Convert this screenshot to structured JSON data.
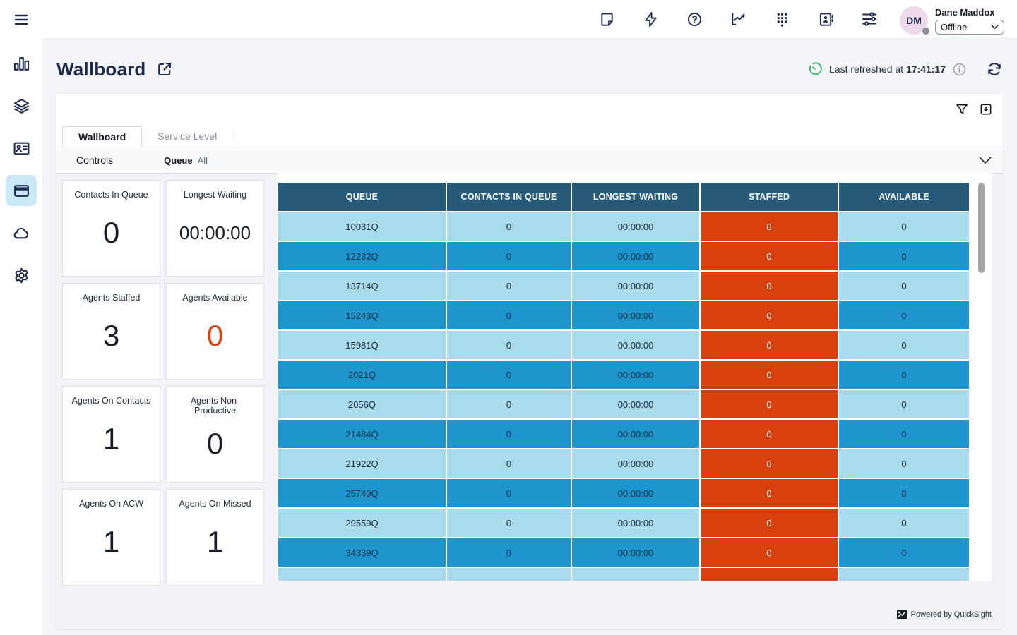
{
  "colors": {
    "navy": "#1d2b4f",
    "accent_green": "#2fb566",
    "table_header": "#265a77",
    "row_light": "#a8dbec",
    "row_blue": "#1e95cd",
    "staffed_orange": "#d8400e",
    "active_nav_bg": "#cbe8f6"
  },
  "sidebar": {
    "menu_icon": "hamburger-icon",
    "items": [
      {
        "name": "metrics",
        "icon": "bar-chart-icon",
        "active": false
      },
      {
        "name": "layers",
        "icon": "layers-icon",
        "active": false
      },
      {
        "name": "contacts",
        "icon": "contact-card-icon",
        "active": false
      },
      {
        "name": "wallboard",
        "icon": "browser-icon",
        "active": true
      },
      {
        "name": "cloud",
        "icon": "cloud-icon",
        "active": false
      },
      {
        "name": "settings",
        "icon": "gear-icon",
        "active": false
      }
    ]
  },
  "topbar": {
    "icons": [
      {
        "name": "note"
      },
      {
        "name": "zap"
      },
      {
        "name": "help"
      },
      {
        "name": "chart-line"
      },
      {
        "name": "dialpad"
      },
      {
        "name": "address-book"
      },
      {
        "name": "sliders"
      }
    ],
    "user": {
      "initials": "DM",
      "name": "Dane Maddox",
      "status": "Offline"
    }
  },
  "header": {
    "title": "Wallboard",
    "last_refreshed_label": "Last refreshed at",
    "last_refreshed_time": "17:41:17"
  },
  "panel": {
    "tabs": [
      {
        "label": "Wallboard",
        "active": true
      },
      {
        "label": "Service Level",
        "active": false
      }
    ],
    "controls": {
      "label": "Controls",
      "filter_name": "Queue",
      "filter_value": "All"
    }
  },
  "kpis": [
    {
      "label": "Contacts In Queue",
      "value": "0"
    },
    {
      "label": "Longest Waiting",
      "value": "00:00:00"
    },
    {
      "label": "Agents Staffed",
      "value": "3"
    },
    {
      "label": "Agents Available",
      "value": "0",
      "highlight": true
    },
    {
      "label": "Agents On Contacts",
      "value": "1"
    },
    {
      "label": "Agents Non-Productive",
      "value": "0"
    },
    {
      "label": "Agents On ACW",
      "value": "1"
    },
    {
      "label": "Agents On Missed",
      "value": "1"
    }
  ],
  "chart_data": {
    "type": "table",
    "columns": [
      "QUEUE",
      "CONTACTS IN QUEUE",
      "LONGEST WAITING",
      "STAFFED",
      "AVAILABLE"
    ],
    "rows": [
      [
        "10031Q",
        "0",
        "00:00:00",
        "0",
        "0"
      ],
      [
        "12232Q",
        "0",
        "00:00:00",
        "0",
        "0"
      ],
      [
        "13714Q",
        "0",
        "00:00:00",
        "0",
        "0"
      ],
      [
        "15243Q",
        "0",
        "00:00:00",
        "0",
        "0"
      ],
      [
        "15981Q",
        "0",
        "00:00:00",
        "0",
        "0"
      ],
      [
        "2021Q",
        "0",
        "00:00:00",
        "0",
        "0"
      ],
      [
        "2056Q",
        "0",
        "00:00:00",
        "0",
        "0"
      ],
      [
        "21464Q",
        "0",
        "00:00:00",
        "0",
        "0"
      ],
      [
        "21922Q",
        "0",
        "00:00:00",
        "0",
        "0"
      ],
      [
        "25740Q",
        "0",
        "00:00:00",
        "0",
        "0"
      ],
      [
        "29559Q",
        "0",
        "00:00:00",
        "0",
        "0"
      ],
      [
        "34339Q",
        "0",
        "00:00:00",
        "0",
        "0"
      ],
      [
        "",
        "",
        "",
        "",
        ""
      ]
    ]
  },
  "footer": {
    "powered_by": "Powered by QuickSight"
  }
}
